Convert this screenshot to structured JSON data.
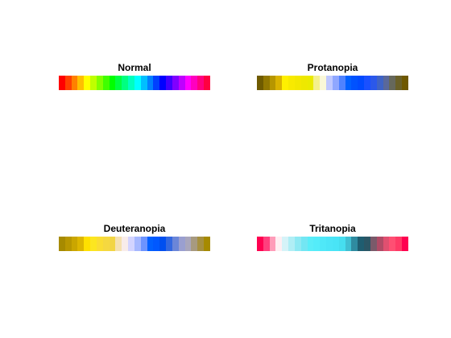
{
  "chart_data": [
    {
      "type": "heatmap",
      "title": "Normal",
      "colors": [
        "#ff0000",
        "#ff4000",
        "#ff8000",
        "#ffbf00",
        "#ffff00",
        "#bfff00",
        "#80ff00",
        "#40ff00",
        "#00ff00",
        "#00ff40",
        "#00ff80",
        "#00ffbf",
        "#00ffff",
        "#00bfff",
        "#0080ff",
        "#0040ff",
        "#0000ff",
        "#4000ff",
        "#8000ff",
        "#bf00ff",
        "#ff00ff",
        "#ff00bf",
        "#ff0080",
        "#ff0040"
      ]
    },
    {
      "type": "heatmap",
      "title": "Protanopia",
      "colors": [
        "#6f5b00",
        "#927800",
        "#b69600",
        "#dab300",
        "#fff000",
        "#f8ea00",
        "#f3e800",
        "#eee800",
        "#eaea00",
        "#f4f08c",
        "#faf8d8",
        "#bfc8ff",
        "#8fa7ff",
        "#4f82ff",
        "#0060ff",
        "#0052ff",
        "#004aff",
        "#1a50ff",
        "#2b58ea",
        "#3f63c5",
        "#5a689a",
        "#66685c",
        "#6a6028",
        "#6f5800"
      ]
    },
    {
      "type": "heatmap",
      "title": "Deuteranopia",
      "colors": [
        "#a68a00",
        "#b89700",
        "#caa600",
        "#ddb600",
        "#ffe000",
        "#fce620",
        "#fadd33",
        "#f5d840",
        "#f2d544",
        "#f5e1b0",
        "#f8ecea",
        "#d3d4ff",
        "#a6b8ff",
        "#6d94ff",
        "#0060ff",
        "#0058ff",
        "#004ff0",
        "#3368e0",
        "#6b86d8",
        "#9a9fd0",
        "#a9a6bc",
        "#a79a80",
        "#a69040",
        "#a68a00"
      ]
    },
    {
      "type": "heatmap",
      "title": "Tritanopia",
      "colors": [
        "#ff0050",
        "#ff3f7d",
        "#ff9cb9",
        "#ffeef2",
        "#d5f3f8",
        "#b0eef5",
        "#8ee9f3",
        "#73e6f3",
        "#5aedf8",
        "#54ecf9",
        "#4fe8f8",
        "#4ce5f7",
        "#49e4f6",
        "#46deef",
        "#40bfd2",
        "#2f8ba0",
        "#1f5d70",
        "#2b5665",
        "#7a5a6a",
        "#b04b66",
        "#e05070",
        "#ff4f73",
        "#ff3a66",
        "#ff0050"
      ]
    }
  ]
}
